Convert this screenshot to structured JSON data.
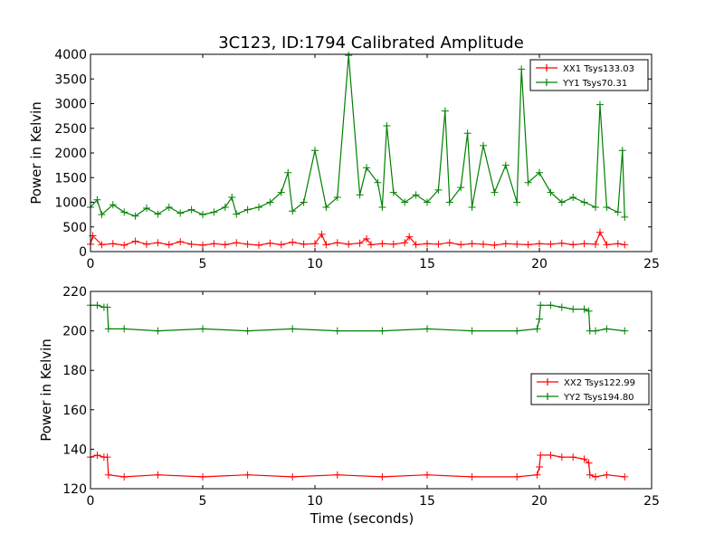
{
  "figure": {
    "title": "3C123, ID:1794 Calibrated Amplitude"
  },
  "chart_data": [
    {
      "type": "line",
      "title": "3C123, ID:1794 Calibrated Amplitude",
      "xlabel": "",
      "ylabel": "Power in Kelvin",
      "xlim": [
        0,
        25
      ],
      "ylim": [
        0,
        4000
      ],
      "xticks": [
        "0",
        "5",
        "10",
        "15",
        "20",
        "25"
      ],
      "yticks": [
        "0",
        "500",
        "1000",
        "1500",
        "2000",
        "2500",
        "3000",
        "3500",
        "4000"
      ],
      "legend_position": "top-right",
      "grid": false,
      "series": [
        {
          "name": "XX1 Tsys133.03",
          "color": "#ff0000",
          "marker": "plus",
          "x": [
            0,
            0.1,
            0.5,
            1,
            1.5,
            2,
            2.5,
            3,
            3.5,
            4,
            4.5,
            5,
            5.5,
            6,
            6.5,
            7,
            7.5,
            8,
            8.5,
            9,
            9.5,
            10,
            10.3,
            10.5,
            11,
            11.5,
            12,
            12.3,
            12.5,
            13,
            13.5,
            14,
            14.2,
            14.5,
            15,
            15.5,
            16,
            16.5,
            17,
            17.5,
            18,
            18.5,
            19,
            19.5,
            20,
            20.5,
            21,
            21.5,
            22,
            22.5,
            22.7,
            23,
            23.5,
            23.8
          ],
          "y": [
            150,
            320,
            140,
            160,
            130,
            210,
            150,
            180,
            140,
            200,
            150,
            130,
            160,
            140,
            180,
            150,
            130,
            170,
            140,
            190,
            150,
            160,
            350,
            140,
            180,
            150,
            170,
            260,
            140,
            160,
            150,
            180,
            300,
            140,
            160,
            150,
            180,
            140,
            160,
            150,
            130,
            160,
            150,
            140,
            160,
            150,
            170,
            140,
            160,
            150,
            390,
            140,
            160,
            140
          ]
        },
        {
          "name": "YY1 Tsys70.31",
          "color": "#008000",
          "marker": "plus",
          "x": [
            0,
            0.3,
            0.5,
            1,
            1.5,
            2,
            2.5,
            3,
            3.5,
            4,
            4.5,
            5,
            5.5,
            6,
            6.3,
            6.5,
            7,
            7.5,
            8,
            8.5,
            8.8,
            9,
            9.5,
            10,
            10.5,
            11,
            11.5,
            12,
            12.3,
            12.8,
            13,
            13.2,
            13.5,
            14,
            14.5,
            15,
            15.5,
            15.8,
            16,
            16.5,
            16.8,
            17,
            17.5,
            18,
            18.5,
            19,
            19.2,
            19.5,
            20,
            20.5,
            21,
            21.5,
            22,
            22.5,
            22.7,
            23,
            23.5,
            23.7,
            23.8
          ],
          "y": [
            900,
            1050,
            750,
            950,
            800,
            720,
            880,
            760,
            900,
            780,
            850,
            750,
            800,
            900,
            1100,
            760,
            850,
            900,
            1000,
            1200,
            1600,
            820,
            1000,
            2050,
            900,
            1100,
            3980,
            1150,
            1700,
            1400,
            900,
            2550,
            1200,
            1000,
            1150,
            1000,
            1250,
            2850,
            1000,
            1300,
            2400,
            900,
            2150,
            1200,
            1750,
            1000,
            3700,
            1400,
            1600,
            1200,
            1000,
            1100,
            1000,
            900,
            2980,
            900,
            800,
            2050,
            700
          ]
        }
      ]
    },
    {
      "type": "line",
      "title": "",
      "xlabel": "Time (seconds)",
      "ylabel": "Power in Kelvin",
      "xlim": [
        0,
        25
      ],
      "ylim": [
        120,
        220
      ],
      "xticks": [
        "0",
        "5",
        "10",
        "15",
        "20",
        "25"
      ],
      "yticks": [
        "120",
        "140",
        "160",
        "180",
        "200",
        "220"
      ],
      "legend_position": "center-right",
      "grid": false,
      "series": [
        {
          "name": "XX2 Tsys122.99",
          "color": "#ff0000",
          "marker": "plus",
          "x": [
            0,
            0.3,
            0.6,
            0.75,
            0.8,
            1.5,
            3,
            5,
            7,
            9,
            11,
            13,
            15,
            17,
            19,
            19.9,
            20,
            20.05,
            20.5,
            21,
            21.5,
            22,
            22.2,
            22.25,
            22.5,
            23,
            23.8
          ],
          "y": [
            136,
            137,
            136,
            136,
            127,
            126,
            127,
            126,
            127,
            126,
            127,
            126,
            127,
            126,
            126,
            127,
            131,
            137,
            137,
            136,
            136,
            135,
            133,
            127,
            126,
            127,
            126
          ]
        },
        {
          "name": "YY2 Tsys194.80",
          "color": "#008000",
          "marker": "plus",
          "x": [
            0,
            0.3,
            0.6,
            0.75,
            0.8,
            1.5,
            3,
            5,
            7,
            9,
            11,
            13,
            15,
            17,
            19,
            19.9,
            20,
            20.05,
            20.5,
            21,
            21.5,
            22,
            22.2,
            22.25,
            22.5,
            23,
            23.8
          ],
          "y": [
            213,
            213,
            212,
            212,
            201,
            201,
            200,
            201,
            200,
            201,
            200,
            200,
            201,
            200,
            200,
            201,
            206,
            213,
            213,
            212,
            211,
            211,
            210,
            200,
            200,
            201,
            200
          ]
        }
      ]
    }
  ]
}
